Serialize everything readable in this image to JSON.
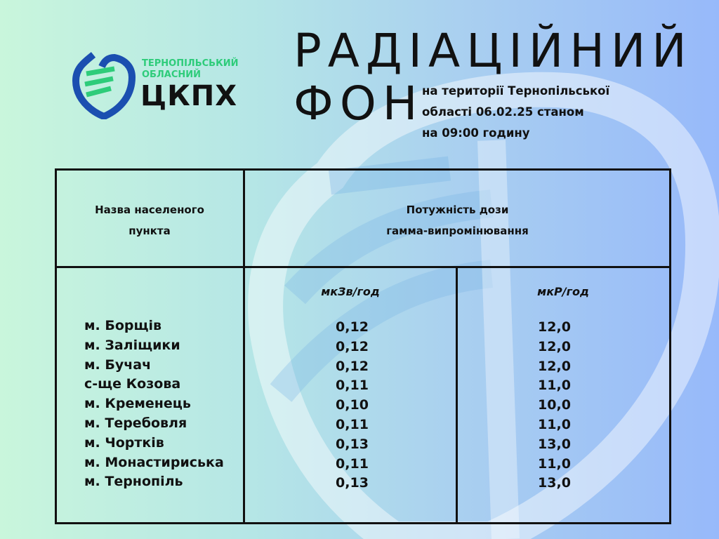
{
  "logo": {
    "line1": "ТЕРНОПІЛЬСЬКИЙ",
    "line2": "ОБЛАСНИЙ",
    "name": "ЦКПХ",
    "colors": {
      "blue": "#1b4fb0",
      "green": "#2ecc7a"
    }
  },
  "title": {
    "line1": "РАДІАЦІЙНИЙ",
    "line2": "ФОН"
  },
  "subtitle": [
    "на території Тернопільської",
    "області 06.02.25 станом",
    "на 09:00 годину"
  ],
  "table": {
    "header_name": [
      "Назва населеного",
      "пункта"
    ],
    "header_dose": [
      "Потужність дози",
      "гамма-випромінювання"
    ],
    "unit1": "мкЗв/год",
    "unit2": "мкР/год",
    "rows": [
      {
        "name": "м. Борщів",
        "usv": "0,12",
        "ur": "12,0"
      },
      {
        "name": "м. Заліщики",
        "usv": "0,12",
        "ur": "12,0"
      },
      {
        "name": "м. Бучач",
        "usv": "0,12",
        "ur": "12,0"
      },
      {
        "name": "с-ще Козова",
        "usv": "0,11",
        "ur": "11,0"
      },
      {
        "name": "м. Кременець",
        "usv": "0,10",
        "ur": "10,0"
      },
      {
        "name": "м. Теребовля",
        "usv": "0,11",
        "ur": "11,0"
      },
      {
        "name": "м. Чортків",
        "usv": "0,13",
        "ur": "13,0"
      },
      {
        "name": "м. Монастириська",
        "usv": "0,11",
        "ur": "11,0"
      },
      {
        "name": "м. Тернопіль",
        "usv": "0,13",
        "ur": "13,0"
      }
    ]
  }
}
